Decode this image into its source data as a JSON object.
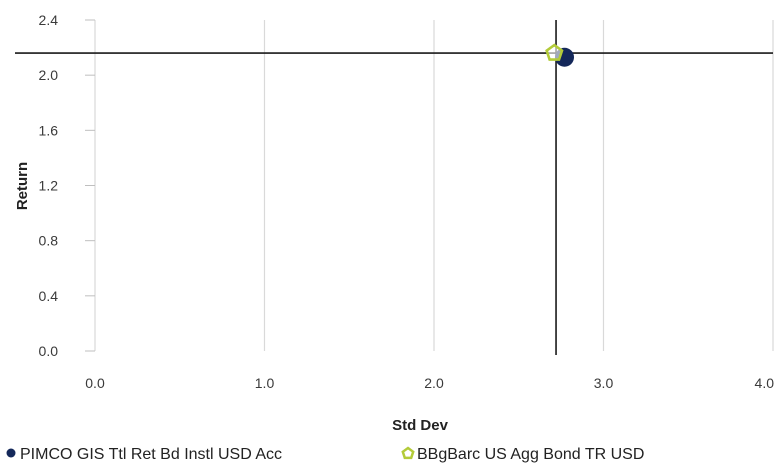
{
  "chart_data": {
    "type": "scatter",
    "title": "",
    "xlabel": "Std Dev",
    "ylabel": "Return",
    "xlim": [
      0,
      4
    ],
    "ylim": [
      0,
      2.4
    ],
    "x_ticks": [
      "0.0",
      "1.0",
      "2.0",
      "3.0",
      "4.0"
    ],
    "y_ticks": [
      "0.0",
      "0.4",
      "0.8",
      "1.2",
      "1.6",
      "2.0",
      "2.4"
    ],
    "grid": "vertical",
    "legend_position": "bottom",
    "reference_lines": {
      "x": 2.72,
      "y": 2.16
    },
    "series": [
      {
        "name": "PIMCO GIS Ttl Ret Bd Instl USD Acc",
        "marker": "circle",
        "color": "#14285a",
        "points": [
          {
            "x": 2.77,
            "y": 2.13
          }
        ]
      },
      {
        "name": "BBgBarc US Agg Bond TR USD",
        "marker": "pentagon",
        "color": "#b3cb39",
        "points": [
          {
            "x": 2.71,
            "y": 2.16
          }
        ]
      }
    ]
  }
}
